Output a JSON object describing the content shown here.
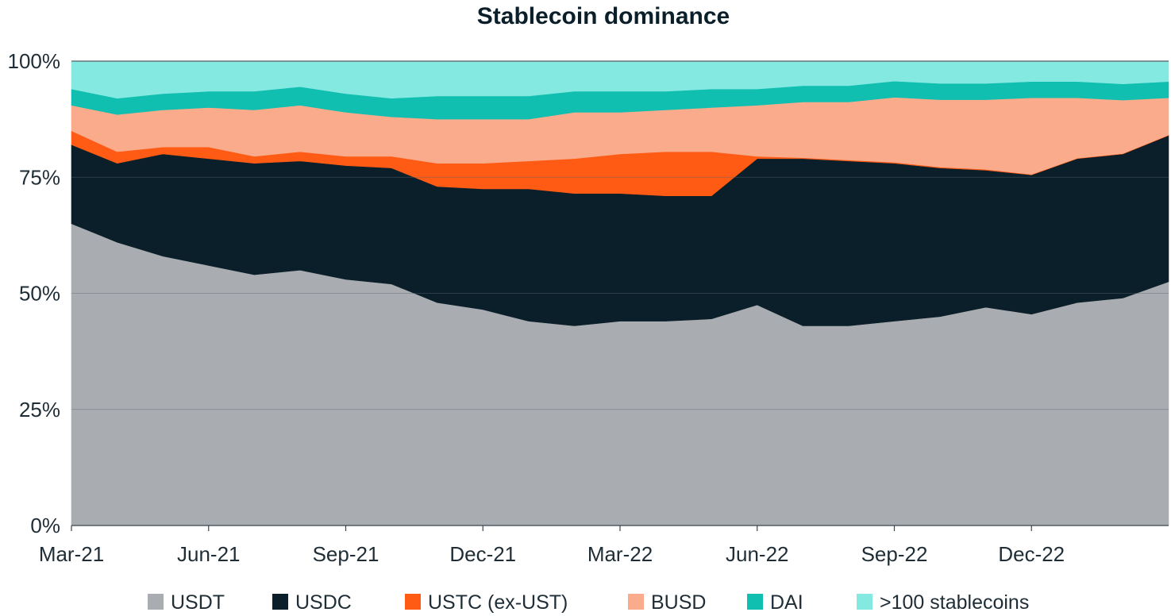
{
  "chart_data": {
    "type": "area",
    "stacked": true,
    "normalized": true,
    "title": "Stablecoin dominance",
    "xlabel": "",
    "ylabel": "",
    "ylim": [
      0,
      100
    ],
    "y_ticks": [
      "0%",
      "25%",
      "50%",
      "75%",
      "100%"
    ],
    "y_tick_values": [
      0,
      25,
      50,
      75,
      100
    ],
    "grid": "horizontal",
    "legend_position": "bottom",
    "x_tick_labels": [
      "Mar-21",
      "Jun-21",
      "Sep-21",
      "Dec-21",
      "Mar-22",
      "Jun-22",
      "Sep-22",
      "Dec-22"
    ],
    "x": [
      "Mar-21",
      "Apr-21",
      "May-21",
      "Jun-21",
      "Jul-21",
      "Aug-21",
      "Sep-21",
      "Oct-21",
      "Nov-21",
      "Dec-21",
      "Jan-22",
      "Feb-22",
      "Mar-22",
      "Apr-22",
      "early May-22",
      "mid May-22",
      "Jun-22",
      "Jul-22",
      "Aug-22",
      "Sep-22",
      "Oct-22",
      "Nov-22",
      "Dec-22",
      "Jan-23",
      "Feb-23"
    ],
    "series": [
      {
        "name": "USDT",
        "color": "#a9acb0",
        "values": [
          65,
          61,
          58,
          56,
          54,
          55,
          53,
          52,
          48,
          46.5,
          44,
          43,
          44,
          44,
          44.5,
          47.5,
          43,
          43,
          44,
          45,
          47,
          45.5,
          48,
          49,
          52.5
        ]
      },
      {
        "name": "USDC",
        "color": "#0b1f2a",
        "values": [
          17,
          17,
          22,
          23,
          24,
          23.5,
          24.5,
          25,
          25,
          26,
          28.5,
          28.5,
          27.5,
          27,
          26.5,
          31.5,
          36,
          35.5,
          34,
          32,
          29.5,
          30,
          31,
          31,
          31.5
        ]
      },
      {
        "name": "USTC (ex-UST)",
        "color": "#ff5b14",
        "values": [
          3,
          2.5,
          1.5,
          2.5,
          1.5,
          2,
          2,
          2.5,
          5,
          5.5,
          6,
          7.5,
          8.5,
          9.5,
          9.5,
          0.5,
          0.2,
          0.2,
          0.2,
          0.2,
          0.2,
          0.1,
          0.1,
          0.1,
          0.1
        ]
      },
      {
        "name": "BUSD",
        "color": "#f9ab8c",
        "values": [
          5.5,
          8,
          8,
          8.5,
          10,
          10,
          9.5,
          8.5,
          9.5,
          9.5,
          9,
          10,
          9,
          9,
          9.5,
          11,
          12,
          12.5,
          14,
          14.5,
          15,
          16.5,
          13,
          11.5,
          8
        ]
      },
      {
        "name": "DAI",
        "color": "#10bfb0",
        "values": [
          3.5,
          3.5,
          3.5,
          3.5,
          4,
          4,
          4,
          4,
          5,
          5,
          5,
          4.5,
          4.5,
          4,
          4,
          3.5,
          3.5,
          3.5,
          3.5,
          3.5,
          3.5,
          3.5,
          3.5,
          3.5,
          3.5
        ]
      },
      {
        "name": ">100 stablecoins",
        "color": "#84e9e0",
        "values": [
          6,
          8,
          7,
          6.5,
          6.5,
          5.5,
          7,
          8,
          7.5,
          7.5,
          7.5,
          6.5,
          6.5,
          6.5,
          6,
          6,
          5.3,
          5.3,
          4.3,
          4.8,
          4.8,
          4.4,
          4.4,
          4.9,
          4.4
        ]
      }
    ]
  }
}
